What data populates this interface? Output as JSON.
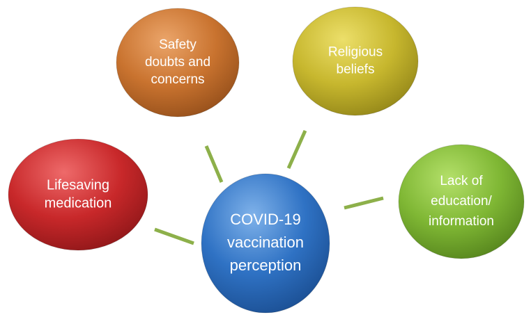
{
  "nodes": [
    {
      "lines": [
        "COVID-19",
        "vaccination",
        "perception"
      ]
    },
    {
      "lines": [
        "Safety",
        "doubts and",
        "concerns"
      ]
    },
    {
      "lines": [
        "Religious",
        "beliefs"
      ]
    },
    {
      "lines": [
        "Lifesaving",
        "medication"
      ]
    },
    {
      "lines": [
        "Lack of",
        "education/",
        "information"
      ]
    }
  ]
}
